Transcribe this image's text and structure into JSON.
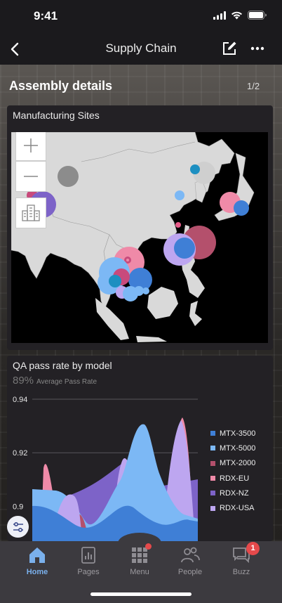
{
  "status_bar": {
    "time": "9:41"
  },
  "nav": {
    "title": "Supply Chain"
  },
  "section": {
    "title": "Assembly details",
    "page_indicator": "1/2"
  },
  "map_card": {
    "title": "Manufacturing Sites"
  },
  "chart_card": {
    "title": "QA pass rate by model",
    "kpi_value": "89%",
    "kpi_label": "Average Pass Rate"
  },
  "chart_data": {
    "type": "area",
    "title": "QA pass rate by model",
    "y_ticks": [
      "0.94",
      "0.92",
      "0.9"
    ],
    "ylim": [
      0.887,
      0.94
    ],
    "grid": true,
    "legend_position": "right",
    "series": [
      {
        "name": "MTX-3500",
        "color": "#3f7fd6"
      },
      {
        "name": "MTX-5000",
        "color": "#7cb8f5"
      },
      {
        "name": "MTX-2000",
        "color": "#b4506c"
      },
      {
        "name": "RDX-EU",
        "color": "#ef8aa8"
      },
      {
        "name": "RDX-NZ",
        "color": "#7d63c8"
      },
      {
        "name": "RDX-USA",
        "color": "#bda6f0"
      }
    ]
  },
  "tabs": [
    {
      "label": "Home",
      "icon": "home-icon",
      "active": true
    },
    {
      "label": "Pages",
      "icon": "pages-icon"
    },
    {
      "label": "Menu",
      "icon": "menu-grid-icon"
    },
    {
      "label": "People",
      "icon": "people-icon"
    },
    {
      "label": "Buzz",
      "icon": "buzz-icon",
      "badge": "1"
    }
  ],
  "colors": {
    "accent": "#7ab0ec",
    "badge": "#e5494b"
  }
}
